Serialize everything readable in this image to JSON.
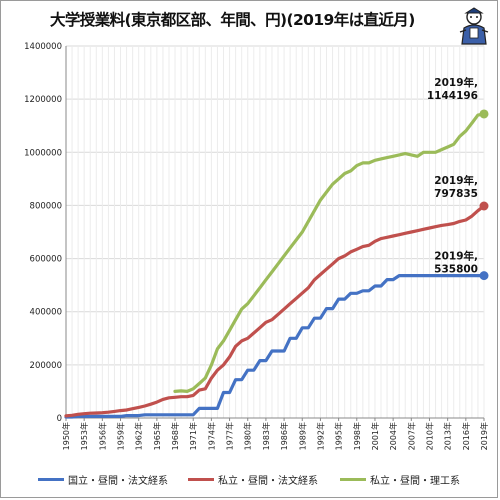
{
  "title": "大学授業料(東京都区部、年間、円)(2019年は直近月)",
  "colors": {
    "public": "#4472c4",
    "private_hum": "#c0504d",
    "private_sci": "#9bbb59"
  },
  "chart_data": {
    "type": "line",
    "title": "大学授業料(東京都区部、年間、円)(2019年は直近月)",
    "xlabel": "",
    "ylabel": "",
    "ylim": [
      0,
      1400000
    ],
    "yticks": [
      0,
      200000,
      400000,
      600000,
      800000,
      1000000,
      1200000,
      1400000
    ],
    "ytick_labels": [
      "0",
      "200000",
      "400000",
      "600000",
      "800000",
      "1000000",
      "1200000",
      "1400000"
    ],
    "x": [
      1950,
      1951,
      1952,
      1953,
      1954,
      1955,
      1956,
      1957,
      1958,
      1959,
      1960,
      1961,
      1962,
      1963,
      1964,
      1965,
      1966,
      1967,
      1968,
      1969,
      1970,
      1971,
      1972,
      1973,
      1974,
      1975,
      1976,
      1977,
      1978,
      1979,
      1980,
      1981,
      1982,
      1983,
      1984,
      1985,
      1986,
      1987,
      1988,
      1989,
      1990,
      1991,
      1992,
      1993,
      1994,
      1995,
      1996,
      1997,
      1998,
      1999,
      2000,
      2001,
      2002,
      2003,
      2004,
      2005,
      2006,
      2007,
      2008,
      2009,
      2010,
      2011,
      2012,
      2013,
      2014,
      2015,
      2016,
      2017,
      2018,
      2019
    ],
    "xtick_labels": [
      "1950年",
      "1953年",
      "1956年",
      "1959年",
      "1962年",
      "1965年",
      "1968年",
      "1971年",
      "1974年",
      "1977年",
      "1980年",
      "1983年",
      "1986年",
      "1989年",
      "1992年",
      "1995年",
      "1998年",
      "2001年",
      "2004年",
      "2007年",
      "2010年",
      "2013年",
      "2016年",
      "2019年"
    ],
    "grid": true,
    "legend_position": "bottom",
    "series": [
      {
        "name": "国立・昼間・法文経系",
        "color": "#4472c4",
        "values": [
          3600,
          3600,
          6000,
          6000,
          6000,
          6000,
          6000,
          6000,
          6000,
          6000,
          9000,
          9000,
          9000,
          12000,
          12000,
          12000,
          12000,
          12000,
          12000,
          12000,
          12000,
          12000,
          36000,
          36000,
          36000,
          36000,
          96000,
          96000,
          144000,
          144000,
          180000,
          180000,
          216000,
          216000,
          252000,
          252000,
          252000,
          300000,
          300000,
          339600,
          339600,
          375600,
          375600,
          411600,
          411600,
          447600,
          447600,
          469200,
          469200,
          478800,
          478800,
          496800,
          496800,
          520800,
          520800,
          535800,
          535800,
          535800,
          535800,
          535800,
          535800,
          535800,
          535800,
          535800,
          535800,
          535800,
          535800,
          535800,
          535800,
          535800
        ]
      },
      {
        "name": "私立・昼間・法文経系",
        "color": "#c0504d",
        "values": [
          8000,
          10000,
          14000,
          16000,
          18000,
          19000,
          20000,
          22000,
          25000,
          28000,
          30000,
          35000,
          40000,
          45000,
          52000,
          60000,
          70000,
          76000,
          78000,
          80000,
          80000,
          85000,
          105000,
          110000,
          150000,
          180000,
          200000,
          230000,
          270000,
          290000,
          300000,
          320000,
          340000,
          360000,
          370000,
          390000,
          410000,
          430000,
          450000,
          470000,
          490000,
          520000,
          540000,
          560000,
          580000,
          600000,
          610000,
          625000,
          635000,
          645000,
          650000,
          665000,
          675000,
          680000,
          685000,
          690000,
          695000,
          700000,
          705000,
          710000,
          715000,
          720000,
          725000,
          728000,
          732000,
          740000,
          745000,
          760000,
          780000,
          797835
        ]
      },
      {
        "name": "私立・昼間・理工系",
        "color": "#9bbb59",
        "values": [
          null,
          null,
          null,
          null,
          null,
          null,
          null,
          null,
          null,
          null,
          null,
          null,
          null,
          null,
          null,
          null,
          null,
          null,
          100000,
          102000,
          100000,
          110000,
          130000,
          150000,
          200000,
          260000,
          290000,
          330000,
          370000,
          410000,
          430000,
          460000,
          490000,
          520000,
          550000,
          580000,
          610000,
          640000,
          670000,
          700000,
          740000,
          780000,
          820000,
          850000,
          880000,
          900000,
          920000,
          930000,
          950000,
          960000,
          960000,
          970000,
          975000,
          980000,
          985000,
          990000,
          995000,
          990000,
          985000,
          1000000,
          1000000,
          1000000,
          1010000,
          1020000,
          1030000,
          1060000,
          1080000,
          1110000,
          1140000,
          1144196
        ]
      }
    ],
    "annotations": [
      {
        "series": "私立・昼間・理工系",
        "line1": "2019年,",
        "line2": "1144196"
      },
      {
        "series": "私立・昼間・法文経系",
        "line1": "2019年,",
        "line2": "797835"
      },
      {
        "series": "国立・昼間・法文経系",
        "line1": "2019年,",
        "line2": "535800"
      }
    ]
  }
}
